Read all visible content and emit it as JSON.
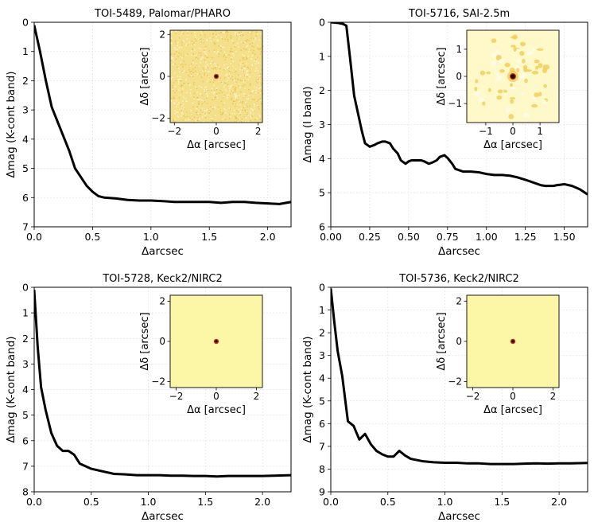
{
  "chart_data": [
    {
      "type": "line",
      "title": "TOI-5489, Palomar/PHARO",
      "xlabel": "Δarcsec",
      "ylabel": "Δmag (K-cont band)",
      "xlim": [
        0,
        2.2
      ],
      "ylim": [
        7,
        0
      ],
      "y_inverted": true,
      "grid": true,
      "xticks": [
        "0.0",
        "0.5",
        "1.0",
        "1.5",
        "2.0"
      ],
      "xtick_values": [
        0,
        0.5,
        1.0,
        1.5,
        2.0
      ],
      "yticks": [
        "0",
        "1",
        "2",
        "3",
        "4",
        "5",
        "6",
        "7"
      ],
      "ytick_values": [
        0,
        1,
        2,
        3,
        4,
        5,
        6,
        7
      ],
      "series": [
        {
          "color": "#000000",
          "x": [
            0,
            0.05,
            0.1,
            0.15,
            0.2,
            0.25,
            0.3,
            0.35,
            0.4,
            0.45,
            0.5,
            0.55,
            0.6,
            0.7,
            0.8,
            0.9,
            1.0,
            1.1,
            1.2,
            1.3,
            1.4,
            1.5,
            1.6,
            1.7,
            1.8,
            1.9,
            2.0,
            2.1,
            2.2
          ],
          "y": [
            0.1,
            1.0,
            2.0,
            2.9,
            3.4,
            3.9,
            4.4,
            5.0,
            5.3,
            5.6,
            5.8,
            5.95,
            6.0,
            6.03,
            6.08,
            6.1,
            6.1,
            6.12,
            6.15,
            6.15,
            6.15,
            6.15,
            6.18,
            6.15,
            6.15,
            6.18,
            6.2,
            6.22,
            6.15
          ]
        }
      ],
      "inset": {
        "xlabel": "Δα [arcsec]",
        "ylabel": "Δδ [arcsec]",
        "xlim": [
          -2.2,
          2.2
        ],
        "ylim": [
          -2.2,
          2.2
        ],
        "xticks": [
          "−2",
          "0",
          "2"
        ],
        "xtick_values": [
          -2,
          0,
          2
        ],
        "yticks": [
          "−2",
          "0",
          "2"
        ],
        "ytick_values": [
          -2,
          0,
          2
        ],
        "background": "#f4e08a",
        "noisy": true,
        "pattern": "none"
      }
    },
    {
      "type": "line",
      "title": "TOI-5716, SAI-2.5m",
      "xlabel": "Δarcsec",
      "ylabel": "Δmag (I band)",
      "xlim": [
        0,
        1.65
      ],
      "ylim": [
        6,
        0
      ],
      "y_inverted": true,
      "grid": true,
      "xticks": [
        "0.00",
        "0.25",
        "0.50",
        "0.75",
        "1.00",
        "1.25",
        "1.50"
      ],
      "xtick_values": [
        0,
        0.25,
        0.5,
        0.75,
        1.0,
        1.25,
        1.5
      ],
      "yticks": [
        "0",
        "1",
        "2",
        "3",
        "4",
        "5",
        "6"
      ],
      "ytick_values": [
        0,
        1,
        2,
        3,
        4,
        5,
        6
      ],
      "series": [
        {
          "color": "#000000",
          "x": [
            0,
            0.05,
            0.08,
            0.1,
            0.125,
            0.15,
            0.2,
            0.22,
            0.25,
            0.28,
            0.3,
            0.33,
            0.35,
            0.38,
            0.4,
            0.43,
            0.45,
            0.48,
            0.5,
            0.52,
            0.55,
            0.58,
            0.6,
            0.63,
            0.65,
            0.68,
            0.7,
            0.73,
            0.75,
            0.78,
            0.8,
            0.85,
            0.9,
            0.95,
            1.0,
            1.05,
            1.1,
            1.15,
            1.2,
            1.25,
            1.3,
            1.35,
            1.38,
            1.4,
            1.43,
            1.45,
            1.5,
            1.55,
            1.6,
            1.65
          ],
          "y": [
            0.0,
            0.02,
            0.05,
            0.1,
            1.1,
            2.15,
            3.2,
            3.55,
            3.65,
            3.6,
            3.55,
            3.5,
            3.5,
            3.55,
            3.7,
            3.85,
            4.05,
            4.15,
            4.08,
            4.05,
            4.05,
            4.05,
            4.08,
            4.15,
            4.12,
            4.05,
            3.95,
            3.9,
            3.98,
            4.15,
            4.3,
            4.38,
            4.38,
            4.4,
            4.45,
            4.48,
            4.48,
            4.5,
            4.55,
            4.62,
            4.7,
            4.78,
            4.8,
            4.8,
            4.8,
            4.78,
            4.75,
            4.8,
            4.9,
            5.05
          ]
        }
      ],
      "inset": {
        "xlabel": "Δα [arcsec]",
        "ylabel": "Δδ [arcsec]",
        "xlim": [
          -1.7,
          1.7
        ],
        "ylim": [
          -1.7,
          1.7
        ],
        "xticks": [
          "−1",
          "0",
          "1"
        ],
        "xtick_values": [
          -1,
          0,
          1
        ],
        "yticks": [
          "−1",
          "0",
          "1"
        ],
        "ytick_values": [
          -1,
          0,
          1
        ],
        "background": "#fff8c8",
        "noisy": false,
        "pattern": "speckle"
      }
    },
    {
      "type": "line",
      "title": "TOI-5728, Keck2/NIRC2",
      "xlabel": "Δarcsec",
      "ylabel": "Δmag (K-cont band)",
      "xlim": [
        0,
        2.25
      ],
      "ylim": [
        8,
        0
      ],
      "y_inverted": true,
      "grid": true,
      "xticks": [
        "0.0",
        "0.5",
        "1.0",
        "1.5",
        "2.0"
      ],
      "xtick_values": [
        0,
        0.5,
        1.0,
        1.5,
        2.0
      ],
      "yticks": [
        "0",
        "1",
        "2",
        "3",
        "4",
        "5",
        "6",
        "7",
        "8"
      ],
      "ytick_values": [
        0,
        1,
        2,
        3,
        4,
        5,
        6,
        7,
        8
      ],
      "series": [
        {
          "color": "#000000",
          "x": [
            0,
            0.03,
            0.06,
            0.1,
            0.15,
            0.2,
            0.25,
            0.3,
            0.35,
            0.4,
            0.45,
            0.5,
            0.55,
            0.6,
            0.7,
            0.8,
            0.9,
            1.0,
            1.1,
            1.2,
            1.3,
            1.4,
            1.5,
            1.6,
            1.7,
            1.8,
            1.9,
            2.0,
            2.1,
            2.25
          ],
          "y": [
            0.1,
            2.3,
            3.9,
            4.8,
            5.7,
            6.2,
            6.4,
            6.4,
            6.55,
            6.9,
            7.0,
            7.1,
            7.15,
            7.2,
            7.3,
            7.32,
            7.35,
            7.35,
            7.35,
            7.37,
            7.37,
            7.38,
            7.38,
            7.4,
            7.38,
            7.38,
            7.38,
            7.38,
            7.37,
            7.35
          ]
        }
      ],
      "inset": {
        "xlabel": "Δα [arcsec]",
        "ylabel": "Δδ [arcsec]",
        "xlim": [
          -2.3,
          2.3
        ],
        "ylim": [
          -2.3,
          2.3
        ],
        "xticks": [
          "−2",
          "0",
          "2"
        ],
        "xtick_values": [
          -2,
          0,
          2
        ],
        "yticks": [
          "−2",
          "0",
          "2"
        ],
        "ytick_values": [
          -2,
          0,
          2
        ],
        "background": "#fbf7a6",
        "noisy": false,
        "pattern": "none"
      }
    },
    {
      "type": "line",
      "title": "TOI-5736, Keck2/NIRC2",
      "xlabel": "Δarcsec",
      "ylabel": "Δmag (K-cont band)",
      "xlim": [
        0,
        2.25
      ],
      "ylim": [
        9,
        0
      ],
      "y_inverted": true,
      "grid": true,
      "xticks": [
        "0.0",
        "0.5",
        "1.0",
        "1.5",
        "2.0"
      ],
      "xtick_values": [
        0,
        0.5,
        1.0,
        1.5,
        2.0
      ],
      "yticks": [
        "0",
        "1",
        "2",
        "3",
        "4",
        "5",
        "6",
        "7",
        "8",
        "9"
      ],
      "ytick_values": [
        0,
        1,
        2,
        3,
        4,
        5,
        6,
        7,
        8,
        9
      ],
      "series": [
        {
          "color": "#000000",
          "x": [
            0,
            0.03,
            0.06,
            0.1,
            0.15,
            0.2,
            0.25,
            0.3,
            0.35,
            0.4,
            0.45,
            0.5,
            0.55,
            0.6,
            0.65,
            0.7,
            0.8,
            0.9,
            1.0,
            1.1,
            1.2,
            1.3,
            1.4,
            1.5,
            1.6,
            1.7,
            1.8,
            1.9,
            2.0,
            2.1,
            2.25
          ],
          "y": [
            0.05,
            1.5,
            2.8,
            3.9,
            5.9,
            6.1,
            6.7,
            6.45,
            6.9,
            7.2,
            7.35,
            7.45,
            7.45,
            7.2,
            7.4,
            7.55,
            7.65,
            7.7,
            7.72,
            7.72,
            7.75,
            7.75,
            7.78,
            7.78,
            7.78,
            7.76,
            7.75,
            7.76,
            7.75,
            7.75,
            7.73
          ]
        }
      ],
      "inset": {
        "xlabel": "Δα [arcsec]",
        "ylabel": "Δδ [arcsec]",
        "xlim": [
          -2.3,
          2.3
        ],
        "ylim": [
          -2.3,
          2.3
        ],
        "xticks": [
          "−2",
          "0",
          "2"
        ],
        "xtick_values": [
          -2,
          0,
          2
        ],
        "yticks": [
          "−2",
          "0",
          "2"
        ],
        "ytick_values": [
          -2,
          0,
          2
        ],
        "background": "#fbf7a6",
        "noisy": false,
        "pattern": "none"
      }
    }
  ]
}
